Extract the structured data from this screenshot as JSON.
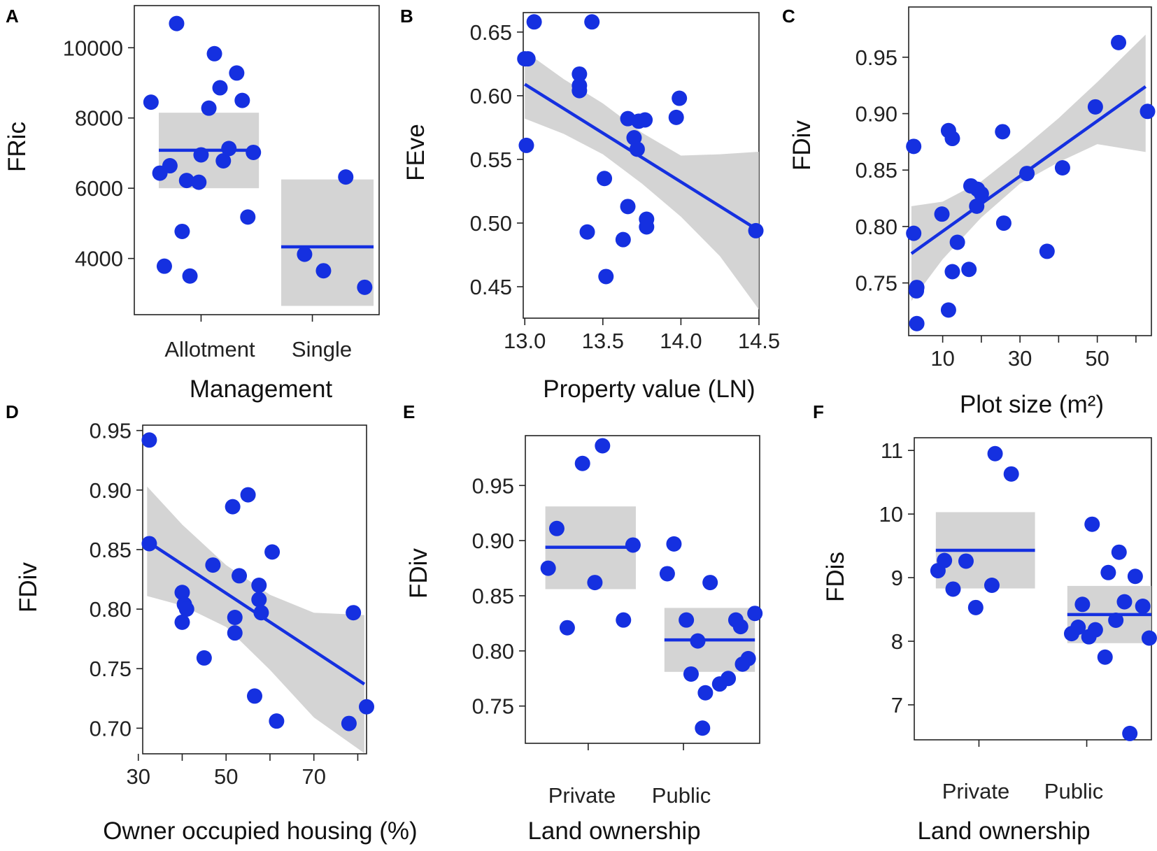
{
  "colors": {
    "points": "#1530e0",
    "line": "#1530e0",
    "band": "#c9c9c9",
    "axis": "#222222"
  },
  "chart_data": [
    {
      "panel": "A",
      "type": "scatter",
      "ylabel": "FRic",
      "xlabel": "Management",
      "categories": [
        "Allotment",
        "Single"
      ],
      "xlim": [
        0.4,
        2.6
      ],
      "ylim": [
        2400,
        11200
      ],
      "yticks": [
        4000,
        6000,
        8000,
        10000
      ],
      "yticklabels": [
        "4000",
        "6000",
        "8000",
        "10000"
      ],
      "fits": [
        {
          "x0": 0.62,
          "x1": 1.52,
          "y0": 7080,
          "y1": 7080,
          "band": [
            6000,
            8150
          ]
        },
        {
          "x0": 1.72,
          "x1": 2.55,
          "y0": 4330,
          "y1": 4330,
          "band": [
            2650,
            6250
          ]
        }
      ],
      "points": [
        [
          0.55,
          8450
        ],
        [
          0.63,
          6430
        ],
        [
          0.72,
          6640
        ],
        [
          0.78,
          10690
        ],
        [
          0.83,
          4770
        ],
        [
          0.67,
          3780
        ],
        [
          0.87,
          6220
        ],
        [
          0.9,
          3500
        ],
        [
          0.98,
          6170
        ],
        [
          1.0,
          6950
        ],
        [
          1.07,
          8280
        ],
        [
          1.12,
          9830
        ],
        [
          1.17,
          8860
        ],
        [
          1.2,
          6780
        ],
        [
          1.25,
          7130
        ],
        [
          1.32,
          9280
        ],
        [
          1.37,
          8500
        ],
        [
          1.42,
          5180
        ],
        [
          1.47,
          7020
        ],
        [
          1.93,
          4120
        ],
        [
          2.1,
          3650
        ],
        [
          2.3,
          6320
        ],
        [
          2.47,
          3180
        ]
      ]
    },
    {
      "panel": "B",
      "type": "scatter",
      "ylabel": "FEve",
      "xlabel": "Property value (LN)",
      "xlim": [
        12.99,
        14.5
      ],
      "ylim": [
        0.4253,
        0.6653
      ],
      "xticks": [
        13.0,
        13.5,
        14.0,
        14.5
      ],
      "xticklabels": [
        "13.0",
        "13.5",
        "14.0",
        "14.5"
      ],
      "yticks": [
        0.45,
        0.5,
        0.55,
        0.6,
        0.65
      ],
      "yticklabels": [
        "0.45",
        "0.50",
        "0.55",
        "0.60",
        "0.65"
      ],
      "fit": {
        "x0": 13.0,
        "x1": 14.5,
        "y0": 0.609,
        "y1": 0.494
      },
      "band": [
        [
          13.0,
          0.582,
          0.635
        ],
        [
          13.25,
          0.57,
          0.613
        ],
        [
          13.5,
          0.554,
          0.594
        ],
        [
          13.75,
          0.531,
          0.571
        ],
        [
          14.0,
          0.505,
          0.553
        ],
        [
          14.25,
          0.474,
          0.554
        ],
        [
          14.5,
          0.432,
          0.556
        ]
      ],
      "points": [
        [
          13.02,
          0.629
        ],
        [
          13.0,
          0.629
        ],
        [
          13.01,
          0.561
        ],
        [
          13.06,
          0.658
        ],
        [
          13.35,
          0.617
        ],
        [
          13.35,
          0.608
        ],
        [
          13.35,
          0.604
        ],
        [
          13.4,
          0.493
        ],
        [
          13.43,
          0.658
        ],
        [
          13.51,
          0.535
        ],
        [
          13.52,
          0.458
        ],
        [
          13.63,
          0.487
        ],
        [
          13.66,
          0.582
        ],
        [
          13.7,
          0.567
        ],
        [
          13.66,
          0.513
        ],
        [
          13.72,
          0.558
        ],
        [
          13.73,
          0.58
        ],
        [
          13.77,
          0.581
        ],
        [
          13.78,
          0.503
        ],
        [
          13.78,
          0.497
        ],
        [
          13.97,
          0.583
        ],
        [
          13.99,
          0.598
        ],
        [
          14.48,
          0.494
        ]
      ]
    },
    {
      "panel": "C",
      "type": "scatter",
      "ylabel": "FDiv",
      "xlabel": "Plot size (m²)",
      "xlim": [
        1.2,
        64
      ],
      "ylim": [
        0.7033,
        0.9945
      ],
      "xticks": [
        10,
        20,
        30,
        40,
        50,
        60
      ],
      "xticklabels": [
        "10",
        "",
        "30",
        "",
        "50",
        ""
      ],
      "yticks": [
        0.75,
        0.8,
        0.85,
        0.9,
        0.95
      ],
      "yticklabels": [
        "0.75",
        "0.80",
        "0.85",
        "0.90",
        "0.95"
      ],
      "fit": {
        "x0": 1.9,
        "x1": 62.5,
        "y0": 0.776,
        "y1": 0.924
      },
      "band": [
        [
          1.9,
          0.734,
          0.818
        ],
        [
          10,
          0.771,
          0.822
        ],
        [
          20,
          0.808,
          0.84
        ],
        [
          30,
          0.838,
          0.867
        ],
        [
          40,
          0.857,
          0.896
        ],
        [
          50,
          0.873,
          0.928
        ],
        [
          62.5,
          0.866,
          0.97
        ]
      ],
      "points": [
        [
          2.5,
          0.871
        ],
        [
          2.5,
          0.794
        ],
        [
          3.3,
          0.746
        ],
        [
          3.2,
          0.743
        ],
        [
          3.3,
          0.714
        ],
        [
          9.8,
          0.811
        ],
        [
          11.5,
          0.885
        ],
        [
          11.5,
          0.726
        ],
        [
          12.5,
          0.878
        ],
        [
          12.5,
          0.76
        ],
        [
          13.8,
          0.786
        ],
        [
          17.3,
          0.836
        ],
        [
          16.8,
          0.762
        ],
        [
          18.8,
          0.818
        ],
        [
          19,
          0.833
        ],
        [
          20,
          0.829
        ],
        [
          25.5,
          0.884
        ],
        [
          25.8,
          0.803
        ],
        [
          31.8,
          0.847
        ],
        [
          37,
          0.778
        ],
        [
          41,
          0.852
        ],
        [
          49.5,
          0.906
        ],
        [
          55.5,
          0.963
        ],
        [
          63,
          0.902
        ]
      ]
    },
    {
      "panel": "D",
      "type": "scatter",
      "ylabel": "FDiv",
      "xlabel": "Owner occupied housing (%)",
      "xlim": [
        31,
        82
      ],
      "ylim": [
        0.6785,
        0.9545
      ],
      "xticks": [
        30,
        40,
        50,
        60,
        70,
        80
      ],
      "xticklabels": [
        "30",
        "",
        "50",
        "",
        "70",
        ""
      ],
      "yticks": [
        0.7,
        0.75,
        0.8,
        0.85,
        0.9,
        0.95
      ],
      "yticklabels": [
        "0.70",
        "0.75",
        "0.80",
        "0.85",
        "0.90",
        "0.95"
      ],
      "fit": {
        "x0": 32,
        "x1": 81.5,
        "y0": 0.857,
        "y1": 0.737
      },
      "band": [
        [
          32,
          0.811,
          0.903
        ],
        [
          40,
          0.803,
          0.871
        ],
        [
          50,
          0.785,
          0.837
        ],
        [
          60,
          0.749,
          0.812
        ],
        [
          70,
          0.709,
          0.797
        ],
        [
          81.5,
          0.679,
          0.795
        ]
      ],
      "points": [
        [
          32.5,
          0.942
        ],
        [
          32.5,
          0.855
        ],
        [
          40,
          0.814
        ],
        [
          40.5,
          0.804
        ],
        [
          40,
          0.789
        ],
        [
          41,
          0.8
        ],
        [
          45,
          0.759
        ],
        [
          47,
          0.837
        ],
        [
          51.5,
          0.886
        ],
        [
          53,
          0.828
        ],
        [
          52,
          0.793
        ],
        [
          52,
          0.78
        ],
        [
          55,
          0.896
        ],
        [
          56.5,
          0.727
        ],
        [
          57.5,
          0.82
        ],
        [
          57.5,
          0.808
        ],
        [
          58,
          0.797
        ],
        [
          60.5,
          0.848
        ],
        [
          61.5,
          0.706
        ],
        [
          78,
          0.704
        ],
        [
          79,
          0.797
        ],
        [
          82,
          0.718
        ]
      ]
    },
    {
      "panel": "E",
      "type": "scatter",
      "ylabel": "FDiv",
      "xlabel": "Land ownership",
      "categories": [
        "Private",
        "Public"
      ],
      "xlim": [
        0.34,
        2.8
      ],
      "ylim": [
        0.7162,
        0.9952
      ],
      "yticks": [
        0.75,
        0.8,
        0.85,
        0.9,
        0.95
      ],
      "yticklabels": [
        "0.75",
        "0.80",
        "0.85",
        "0.90",
        "0.95"
      ],
      "fits": [
        {
          "x0": 0.55,
          "x1": 1.5,
          "y0": 0.894,
          "y1": 0.894,
          "band": [
            0.856,
            0.931
          ]
        },
        {
          "x0": 1.8,
          "x1": 2.75,
          "y0": 0.81,
          "y1": 0.81,
          "band": [
            0.781,
            0.839
          ]
        }
      ],
      "points": [
        [
          0.58,
          0.875
        ],
        [
          0.67,
          0.911
        ],
        [
          0.78,
          0.821
        ],
        [
          0.94,
          0.97
        ],
        [
          1.07,
          0.862
        ],
        [
          1.15,
          0.986
        ],
        [
          1.37,
          0.828
        ],
        [
          1.47,
          0.896
        ],
        [
          1.83,
          0.87
        ],
        [
          1.9,
          0.897
        ],
        [
          2.03,
          0.828
        ],
        [
          2.08,
          0.779
        ],
        [
          2.15,
          0.809
        ],
        [
          2.23,
          0.762
        ],
        [
          2.28,
          0.862
        ],
        [
          2.2,
          0.73
        ],
        [
          2.38,
          0.77
        ],
        [
          2.47,
          0.775
        ],
        [
          2.55,
          0.828
        ],
        [
          2.6,
          0.822
        ],
        [
          2.62,
          0.788
        ],
        [
          2.68,
          0.793
        ],
        [
          2.75,
          0.834
        ]
      ]
    },
    {
      "panel": "F",
      "type": "scatter",
      "ylabel": "FDis",
      "xlabel": "Land ownership",
      "categories": [
        "Private",
        "Public"
      ],
      "xlim": [
        0.4,
        2.6
      ],
      "ylim": [
        6.45,
        11.2
      ],
      "yticks": [
        7,
        8,
        9,
        10,
        11
      ],
      "yticklabels": [
        "7",
        "8",
        "9",
        "10",
        "11"
      ],
      "fits": [
        {
          "x0": 0.6,
          "x1": 1.52,
          "y0": 9.43,
          "y1": 9.43,
          "band": [
            8.83,
            10.03
          ]
        },
        {
          "x0": 1.82,
          "x1": 2.6,
          "y0": 8.42,
          "y1": 8.42,
          "band": [
            7.97,
            8.87
          ]
        }
      ],
      "points": [
        [
          0.62,
          9.11
        ],
        [
          0.68,
          9.27
        ],
        [
          0.76,
          8.82
        ],
        [
          0.88,
          9.26
        ],
        [
          0.97,
          8.53
        ],
        [
          1.12,
          8.88
        ],
        [
          1.15,
          10.95
        ],
        [
          1.3,
          10.63
        ],
        [
          1.86,
          8.12
        ],
        [
          1.92,
          8.22
        ],
        [
          1.96,
          8.58
        ],
        [
          2.02,
          8.07
        ],
        [
          2.05,
          9.84
        ],
        [
          2.08,
          8.18
        ],
        [
          2.17,
          7.75
        ],
        [
          2.2,
          9.08
        ],
        [
          2.27,
          8.33
        ],
        [
          2.3,
          9.4
        ],
        [
          2.35,
          8.62
        ],
        [
          2.4,
          6.55
        ],
        [
          2.45,
          9.02
        ],
        [
          2.52,
          8.55
        ],
        [
          2.58,
          8.05
        ]
      ]
    }
  ]
}
